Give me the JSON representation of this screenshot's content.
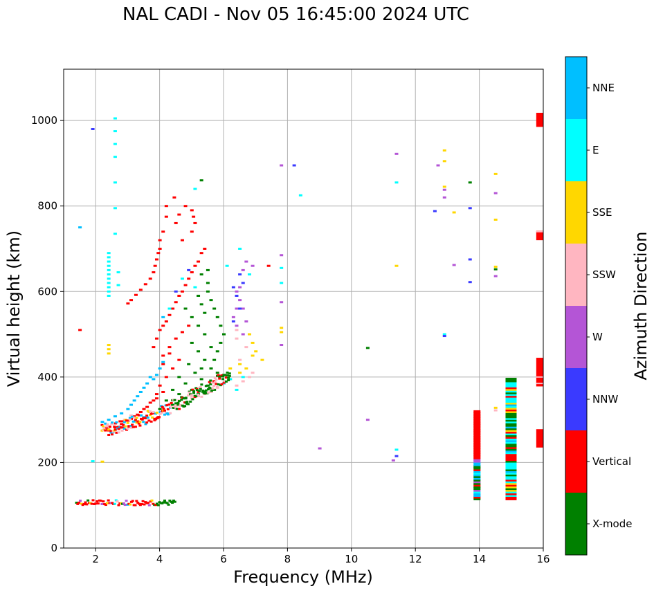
{
  "chart_data": {
    "type": "scatter",
    "title": "NAL CADI - Nov 05 16:45:00 2024 UTC",
    "xlabel": "Frequency (MHz)",
    "ylabel": "Virtual height (km)",
    "xlim": [
      1.0,
      16.0
    ],
    "ylim": [
      0,
      1120
    ],
    "xticks": [
      2,
      4,
      6,
      8,
      10,
      12,
      14,
      16
    ],
    "yticks": [
      0,
      200,
      400,
      600,
      800,
      1000
    ],
    "grid": true,
    "colorbar": {
      "label": "Azimuth Direction",
      "categories": [
        "X-mode",
        "Vertical",
        "NNW",
        "W",
        "SSW",
        "SSE",
        "E",
        "NNE"
      ],
      "colors": [
        "#008000",
        "#ff0000",
        "#3a3aff",
        "#b455d6",
        "#ffb6c1",
        "#ffd700",
        "#00ffff",
        "#00bfff"
      ]
    },
    "points": [
      [
        1.5,
        750,
        "NNE"
      ],
      [
        1.5,
        510,
        "Vertical"
      ],
      [
        1.9,
        980,
        "NNW"
      ],
      [
        2.6,
        1005,
        "E"
      ],
      [
        2.6,
        975,
        "E"
      ],
      [
        2.6,
        945,
        "E"
      ],
      [
        2.6,
        915,
        "E"
      ],
      [
        2.6,
        855,
        "E"
      ],
      [
        2.6,
        795,
        "E"
      ],
      [
        2.6,
        735,
        "E"
      ],
      [
        2.4,
        690,
        "E"
      ],
      [
        2.4,
        680,
        "E"
      ],
      [
        2.4,
        670,
        "E"
      ],
      [
        2.4,
        660,
        "E"
      ],
      [
        2.4,
        650,
        "E"
      ],
      [
        2.4,
        640,
        "E"
      ],
      [
        2.4,
        630,
        "E"
      ],
      [
        2.4,
        620,
        "E"
      ],
      [
        2.4,
        610,
        "E"
      ],
      [
        2.4,
        600,
        "E"
      ],
      [
        2.4,
        590,
        "E"
      ],
      [
        2.4,
        475,
        "SSE"
      ],
      [
        2.4,
        465,
        "SSE"
      ],
      [
        2.4,
        455,
        "SSE"
      ],
      [
        2.2,
        202,
        "SSE"
      ],
      [
        1.9,
        203,
        "E"
      ],
      [
        2.7,
        645,
        "E"
      ],
      [
        2.7,
        615,
        "E"
      ],
      [
        3.0,
        572,
        "Vertical"
      ],
      [
        3.1,
        580,
        "Vertical"
      ],
      [
        3.25,
        592,
        "Vertical"
      ],
      [
        3.4,
        604,
        "Vertical"
      ],
      [
        3.55,
        617,
        "Vertical"
      ],
      [
        3.7,
        630,
        "Vertical"
      ],
      [
        3.8,
        645,
        "Vertical"
      ],
      [
        3.85,
        660,
        "Vertical"
      ],
      [
        3.9,
        675,
        "Vertical"
      ],
      [
        3.95,
        690,
        "Vertical"
      ],
      [
        4.0,
        700,
        "Vertical"
      ],
      [
        4.0,
        720,
        "Vertical"
      ],
      [
        4.1,
        740,
        "Vertical"
      ],
      [
        4.2,
        775,
        "Vertical"
      ],
      [
        4.2,
        800,
        "Vertical"
      ],
      [
        4.45,
        820,
        "Vertical"
      ],
      [
        4.6,
        780,
        "Vertical"
      ],
      [
        4.8,
        800,
        "Vertical"
      ],
      [
        5.0,
        790,
        "Vertical"
      ],
      [
        5.05,
        775,
        "Vertical"
      ],
      [
        5.0,
        740,
        "Vertical"
      ],
      [
        5.1,
        760,
        "Vertical"
      ],
      [
        4.5,
        760,
        "Vertical"
      ],
      [
        4.7,
        720,
        "Vertical"
      ],
      [
        5.1,
        840,
        "E"
      ],
      [
        5.3,
        860,
        "X-mode"
      ],
      [
        3.8,
        470,
        "Vertical"
      ],
      [
        3.9,
        490,
        "Vertical"
      ],
      [
        4.0,
        510,
        "Vertical"
      ],
      [
        4.1,
        520,
        "Vertical"
      ],
      [
        4.2,
        530,
        "Vertical"
      ],
      [
        4.3,
        545,
        "Vertical"
      ],
      [
        4.4,
        560,
        "Vertical"
      ],
      [
        4.5,
        575,
        "Vertical"
      ],
      [
        4.6,
        590,
        "Vertical"
      ],
      [
        4.7,
        600,
        "Vertical"
      ],
      [
        4.8,
        615,
        "Vertical"
      ],
      [
        4.9,
        630,
        "Vertical"
      ],
      [
        5.0,
        645,
        "Vertical"
      ],
      [
        5.1,
        660,
        "Vertical"
      ],
      [
        5.2,
        670,
        "Vertical"
      ],
      [
        5.3,
        690,
        "Vertical"
      ],
      [
        5.4,
        700,
        "Vertical"
      ],
      [
        4.1,
        540,
        "NNE"
      ],
      [
        4.3,
        560,
        "E"
      ],
      [
        4.5,
        600,
        "NNW"
      ],
      [
        4.7,
        630,
        "E"
      ],
      [
        4.9,
        650,
        "NNW"
      ],
      [
        5.1,
        610,
        "E"
      ],
      [
        5.2,
        590,
        "X-mode"
      ],
      [
        5.3,
        570,
        "X-mode"
      ],
      [
        5.4,
        550,
        "X-mode"
      ],
      [
        5.5,
        600,
        "X-mode"
      ],
      [
        5.5,
        620,
        "X-mode"
      ],
      [
        5.6,
        580,
        "X-mode"
      ],
      [
        5.7,
        560,
        "X-mode"
      ],
      [
        5.8,
        540,
        "X-mode"
      ],
      [
        5.9,
        520,
        "X-mode"
      ],
      [
        6.0,
        500,
        "X-mode"
      ],
      [
        5.9,
        480,
        "X-mode"
      ],
      [
        5.8,
        460,
        "X-mode"
      ],
      [
        5.6,
        470,
        "X-mode"
      ],
      [
        5.4,
        500,
        "X-mode"
      ],
      [
        5.2,
        520,
        "X-mode"
      ],
      [
        5.0,
        540,
        "X-mode"
      ],
      [
        4.8,
        560,
        "X-mode"
      ],
      [
        5.3,
        640,
        "X-mode"
      ],
      [
        5.5,
        650,
        "X-mode"
      ],
      [
        5.0,
        480,
        "X-mode"
      ],
      [
        5.2,
        460,
        "X-mode"
      ],
      [
        5.4,
        440,
        "X-mode"
      ],
      [
        5.6,
        420,
        "X-mode"
      ],
      [
        5.8,
        410,
        "X-mode"
      ],
      [
        6.0,
        405,
        "X-mode"
      ],
      [
        4.9,
        430,
        "X-mode"
      ],
      [
        5.1,
        410,
        "X-mode"
      ],
      [
        5.3,
        395,
        "X-mode"
      ],
      [
        5.5,
        380,
        "X-mode"
      ],
      [
        5.7,
        370,
        "X-mode"
      ],
      [
        4.6,
        400,
        "X-mode"
      ],
      [
        4.8,
        385,
        "X-mode"
      ],
      [
        5.0,
        370,
        "X-mode"
      ],
      [
        5.2,
        360,
        "X-mode"
      ],
      [
        4.4,
        370,
        "X-mode"
      ],
      [
        4.6,
        360,
        "X-mode"
      ],
      [
        4.8,
        350,
        "X-mode"
      ],
      [
        4.2,
        345,
        "X-mode"
      ],
      [
        4.4,
        335,
        "X-mode"
      ],
      [
        4.0,
        325,
        "X-mode"
      ],
      [
        4.2,
        315,
        "X-mode"
      ],
      [
        5.3,
        420,
        "X-mode"
      ],
      [
        5.7,
        440,
        "X-mode"
      ],
      [
        4.6,
        440,
        "Vertical"
      ],
      [
        4.4,
        420,
        "Vertical"
      ],
      [
        4.2,
        400,
        "Vertical"
      ],
      [
        4.0,
        380,
        "Vertical"
      ],
      [
        3.9,
        360,
        "Vertical"
      ],
      [
        3.8,
        345,
        "Vertical"
      ],
      [
        3.6,
        330,
        "Vertical"
      ],
      [
        3.4,
        318,
        "Vertical"
      ],
      [
        3.2,
        308,
        "Vertical"
      ],
      [
        3.0,
        298,
        "Vertical"
      ],
      [
        2.8,
        290,
        "Vertical"
      ],
      [
        2.6,
        282,
        "Vertical"
      ],
      [
        2.4,
        275,
        "Vertical"
      ],
      [
        4.1,
        450,
        "Vertical"
      ],
      [
        4.3,
        470,
        "Vertical"
      ],
      [
        4.5,
        490,
        "Vertical"
      ],
      [
        4.7,
        505,
        "Vertical"
      ],
      [
        4.9,
        520,
        "Vertical"
      ],
      [
        4.1,
        430,
        "Vertical"
      ],
      [
        4.3,
        455,
        "Vertical"
      ],
      [
        3.7,
        340,
        "Vertical"
      ],
      [
        3.5,
        325,
        "Vertical"
      ],
      [
        3.3,
        312,
        "Vertical"
      ],
      [
        3.1,
        302,
        "Vertical"
      ],
      [
        3.9,
        350,
        "Vertical"
      ],
      [
        4.1,
        365,
        "Vertical"
      ],
      [
        3.6,
        385,
        "NNE"
      ],
      [
        3.5,
        375,
        "NNE"
      ],
      [
        3.4,
        365,
        "NNE"
      ],
      [
        3.3,
        355,
        "NNE"
      ],
      [
        3.2,
        345,
        "NNE"
      ],
      [
        3.1,
        335,
        "NNE"
      ],
      [
        3.0,
        325,
        "NNE"
      ],
      [
        2.8,
        315,
        "NNE"
      ],
      [
        2.6,
        308,
        "NNE"
      ],
      [
        2.4,
        300,
        "NNE"
      ],
      [
        2.2,
        295,
        "NNE"
      ],
      [
        3.8,
        395,
        "NNE"
      ],
      [
        3.9,
        405,
        "NNE"
      ],
      [
        4.0,
        420,
        "NNE"
      ],
      [
        4.1,
        435,
        "NNE"
      ],
      [
        3.7,
        400,
        "NNE"
      ],
      [
        2.5,
        290,
        "SSW"
      ],
      [
        2.7,
        285,
        "SSW"
      ],
      [
        2.9,
        300,
        "SSW"
      ],
      [
        3.1,
        310,
        "SSW"
      ],
      [
        5.0,
        350,
        "SSW"
      ],
      [
        5.2,
        355,
        "SSW"
      ],
      [
        5.4,
        360,
        "SSW"
      ],
      [
        5.6,
        365,
        "SSW"
      ],
      [
        5.8,
        375,
        "SSW"
      ],
      [
        6.0,
        385,
        "SSW"
      ],
      [
        6.2,
        395,
        "SSW"
      ],
      [
        4.8,
        340,
        "SSW"
      ],
      [
        4.6,
        345,
        "SSW"
      ],
      [
        6.4,
        380,
        "SSW"
      ],
      [
        6.6,
        390,
        "SSW"
      ],
      [
        6.8,
        400,
        "SSW"
      ],
      [
        6.9,
        410,
        "SSW"
      ],
      [
        6.5,
        440,
        "SSW"
      ],
      [
        6.7,
        470,
        "SSW"
      ],
      [
        6.4,
        490,
        "SSW"
      ],
      [
        6.4,
        510,
        "SSW"
      ],
      [
        6.2,
        395,
        "E"
      ],
      [
        6.0,
        385,
        "E"
      ],
      [
        6.4,
        370,
        "E"
      ],
      [
        6.6,
        400,
        "E"
      ],
      [
        6.2,
        420,
        "SSE"
      ],
      [
        6.5,
        430,
        "SSE"
      ],
      [
        6.7,
        420,
        "SSE"
      ],
      [
        6.9,
        450,
        "SSE"
      ],
      [
        7.0,
        460,
        "SSE"
      ],
      [
        6.9,
        480,
        "SSE"
      ],
      [
        6.8,
        500,
        "SSE"
      ],
      [
        7.2,
        440,
        "SSE"
      ],
      [
        6.5,
        410,
        "SSE"
      ],
      [
        6.4,
        600,
        "W"
      ],
      [
        6.5,
        580,
        "W"
      ],
      [
        6.6,
        560,
        "W"
      ],
      [
        6.7,
        530,
        "W"
      ],
      [
        6.3,
        540,
        "W"
      ],
      [
        6.4,
        560,
        "W"
      ],
      [
        6.5,
        610,
        "W"
      ],
      [
        6.6,
        650,
        "W"
      ],
      [
        6.7,
        670,
        "W"
      ],
      [
        6.4,
        520,
        "W"
      ],
      [
        6.6,
        500,
        "W"
      ],
      [
        6.3,
        610,
        "NNW"
      ],
      [
        6.5,
        640,
        "NNW"
      ],
      [
        6.4,
        590,
        "NNW"
      ],
      [
        6.5,
        560,
        "NNW"
      ],
      [
        6.3,
        530,
        "NNW"
      ],
      [
        6.6,
        620,
        "NNW"
      ],
      [
        6.8,
        640,
        "E"
      ],
      [
        6.5,
        700,
        "E"
      ],
      [
        6.1,
        660,
        "E"
      ],
      [
        6.9,
        660,
        "W"
      ],
      [
        7.4,
        660,
        "Vertical"
      ],
      [
        7.8,
        685,
        "W"
      ],
      [
        7.8,
        620,
        "E"
      ],
      [
        7.8,
        655,
        "E"
      ],
      [
        7.8,
        575,
        "W"
      ],
      [
        7.8,
        515,
        "SSE"
      ],
      [
        7.8,
        505,
        "SSE"
      ],
      [
        7.8,
        475,
        "W"
      ],
      [
        7.8,
        895,
        "W"
      ],
      [
        8.2,
        895,
        "NNW"
      ],
      [
        8.4,
        825,
        "E"
      ],
      [
        9.0,
        233,
        "W"
      ],
      [
        10.5,
        468,
        "X-mode"
      ],
      [
        10.5,
        300,
        "W"
      ],
      [
        11.3,
        205,
        "W"
      ],
      [
        11.4,
        215,
        "NNW"
      ],
      [
        11.4,
        230,
        "E"
      ],
      [
        11.4,
        660,
        "SSE"
      ],
      [
        11.4,
        855,
        "E"
      ],
      [
        11.4,
        922,
        "W"
      ],
      [
        12.6,
        788,
        "NNW"
      ],
      [
        12.7,
        895,
        "W"
      ],
      [
        12.9,
        930,
        "SSE"
      ],
      [
        12.9,
        905,
        "SSE"
      ],
      [
        12.9,
        845,
        "SSE"
      ],
      [
        12.9,
        838,
        "W"
      ],
      [
        12.9,
        820,
        "W"
      ],
      [
        12.9,
        500,
        "E"
      ],
      [
        12.9,
        496,
        "NNW"
      ],
      [
        13.2,
        785,
        "SSE"
      ],
      [
        13.2,
        662,
        "W"
      ],
      [
        13.7,
        855,
        "X-mode"
      ],
      [
        13.7,
        795,
        "NNW"
      ],
      [
        13.7,
        675,
        "NNW"
      ],
      [
        13.7,
        622,
        "NNW"
      ],
      [
        14.5,
        875,
        "SSE"
      ],
      [
        14.5,
        830,
        "W"
      ],
      [
        14.5,
        768,
        "SSE"
      ],
      [
        14.5,
        658,
        "SSE"
      ],
      [
        14.5,
        652,
        "X-mode"
      ],
      [
        14.5,
        636,
        "W"
      ],
      [
        14.5,
        328,
        "SSE"
      ],
      [
        14.5,
        322,
        "SSW"
      ]
    ]
  }
}
